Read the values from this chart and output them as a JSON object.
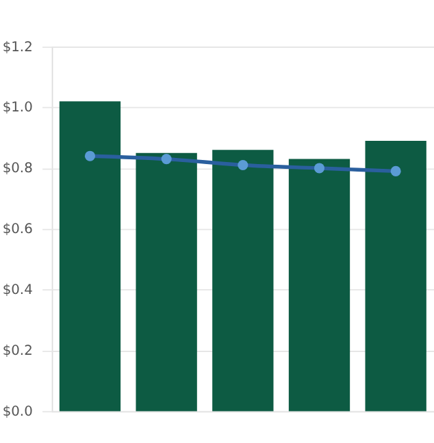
{
  "chart_data": {
    "type": "bar",
    "categories": [
      null,
      null,
      null,
      null,
      null
    ],
    "series": [
      {
        "color": "#0d5b43",
        "values": [
          1.02,
          0.85,
          0.86,
          0.83,
          0.89
        ]
      },
      {
        "type": "line",
        "color": "#2a5f9e",
        "values": [
          0.84,
          0.83,
          0.81,
          0.8,
          0.79
        ]
      }
    ],
    "ylim": [
      0,
      1.2
    ],
    "yticks": [
      {
        "value": 0,
        "label": "$0.0"
      },
      {
        "value": 0.2,
        "label": "$0.2"
      },
      {
        "value": 0.4,
        "label": "$0.4"
      },
      {
        "value": 0.6,
        "label": "$0.6"
      },
      {
        "value": 0.8,
        "label": "$0.8"
      },
      {
        "value": 1.0,
        "label": "$1.0"
      },
      {
        "value": 1.2,
        "label": "$1.2"
      }
    ],
    "grid": "y",
    "marker": "circle",
    "line_style": "solid",
    "tick_labels": "y"
  }
}
